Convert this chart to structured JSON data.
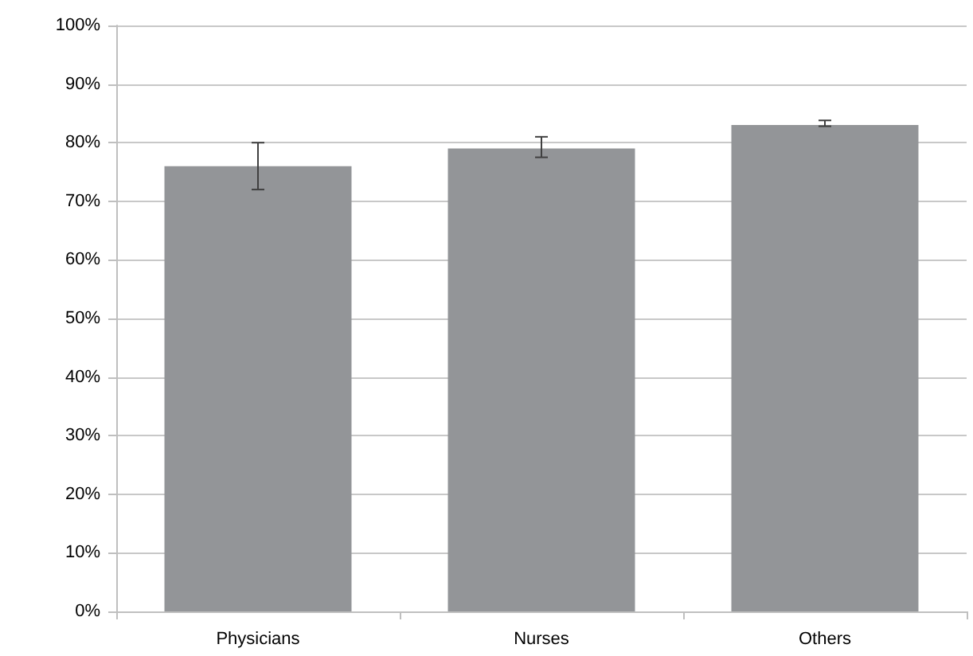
{
  "chart_data": {
    "type": "bar",
    "categories": [
      "Physicians",
      "Nurses",
      "Others"
    ],
    "values": [
      76,
      79,
      83
    ],
    "color": "#939598",
    "errors": [
      [
        72,
        80
      ],
      [
        77.5,
        81
      ],
      [
        82.8,
        83.8
      ]
    ],
    "ylim": [
      0,
      100
    ],
    "yticks": [
      {
        "value": 0,
        "label": "0%"
      },
      {
        "value": 10,
        "label": "10%"
      },
      {
        "value": 20,
        "label": "20%"
      },
      {
        "value": 30,
        "label": "30%"
      },
      {
        "value": 40,
        "label": "40%"
      },
      {
        "value": 50,
        "label": "50%"
      },
      {
        "value": 60,
        "label": "60%"
      },
      {
        "value": 70,
        "label": "70%"
      },
      {
        "value": 80,
        "label": "80%"
      },
      {
        "value": 90,
        "label": "90%"
      },
      {
        "value": 100,
        "label": "100%"
      }
    ],
    "grid": "y"
  }
}
